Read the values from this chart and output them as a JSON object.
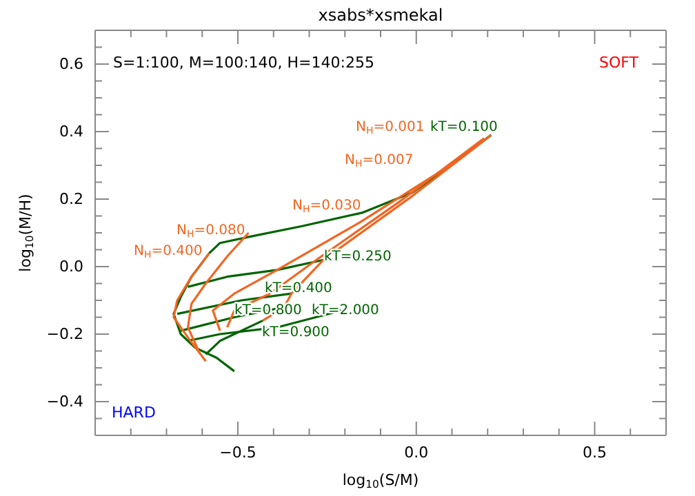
{
  "chart_data": {
    "type": "line",
    "title": "xsabs*xsmekal",
    "xlabel": "log$_{10}$(S/M)",
    "ylabel": "log$_{10}$(M/H)",
    "annotations": [
      "S=1:100, M=100:140, H=140:255",
      "SOFT",
      "HARD"
    ],
    "xlim": [
      -0.9,
      0.7
    ],
    "ylim": [
      -0.5,
      0.7
    ],
    "xticks": [
      {
        "value": -0.9,
        "label": null
      },
      {
        "value": -0.8,
        "label": null
      },
      {
        "value": -0.7,
        "label": null
      },
      {
        "value": -0.6,
        "label": null
      },
      {
        "value": -0.5,
        "label": "−0.5"
      },
      {
        "value": -0.4,
        "label": null
      },
      {
        "value": -0.3,
        "label": null
      },
      {
        "value": -0.2,
        "label": null
      },
      {
        "value": -0.1,
        "label": null
      },
      {
        "value": 0,
        "label": "0.0"
      },
      {
        "value": 0.1,
        "label": null
      },
      {
        "value": 0.2,
        "label": null
      },
      {
        "value": 0.3,
        "label": null
      },
      {
        "value": 0.4,
        "label": null
      },
      {
        "value": 0.5,
        "label": "0.5"
      },
      {
        "value": 0.6,
        "label": null
      },
      {
        "value": 0.7,
        "label": null
      }
    ],
    "yticks": [
      {
        "value": -0.45,
        "label": null
      },
      {
        "value": -0.4,
        "label": "−0.4"
      },
      {
        "value": -0.35,
        "label": null
      },
      {
        "value": -0.3,
        "label": null
      },
      {
        "value": -0.25,
        "label": null
      },
      {
        "value": -0.2,
        "label": "−0.2"
      },
      {
        "value": -0.15,
        "label": null
      },
      {
        "value": -0.1,
        "label": null
      },
      {
        "value": -0.05,
        "label": null
      },
      {
        "value": 0,
        "label": "0.0"
      },
      {
        "value": 0.05,
        "label": null
      },
      {
        "value": 0.1,
        "label": null
      },
      {
        "value": 0.15,
        "label": null
      },
      {
        "value": 0.2,
        "label": "0.2"
      },
      {
        "value": 0.25,
        "label": null
      },
      {
        "value": 0.3,
        "label": null
      },
      {
        "value": 0.35,
        "label": null
      },
      {
        "value": 0.4,
        "label": "0.4"
      },
      {
        "value": 0.45,
        "label": null
      },
      {
        "value": 0.5,
        "label": null
      },
      {
        "value": 0.55,
        "label": null
      },
      {
        "value": 0.6,
        "label": "0.6"
      },
      {
        "value": 0.65,
        "label": null
      }
    ],
    "grid": false,
    "legend": false,
    "marker": "none",
    "line_style": "solid",
    "series": [
      {
        "name": "kT=0.100",
        "color": "#006400",
        "x": [
          0.21,
          0.11,
          -0.01,
          -0.15,
          -0.32,
          -0.46,
          -0.55,
          -0.58,
          -0.63,
          -0.66,
          -0.68,
          -0.66,
          -0.62,
          -0.56,
          -0.51
        ],
        "values": [
          0.39,
          0.31,
          0.22,
          0.16,
          0.12,
          0.09,
          0.07,
          0.04,
          -0.03,
          -0.09,
          -0.14,
          -0.2,
          -0.24,
          -0.27,
          -0.31
        ]
      },
      {
        "name": "kT=0.250",
        "color": "#006400",
        "x": [
          -0.26,
          -0.39,
          -0.53,
          -0.64
        ],
        "values": [
          0.02,
          -0.01,
          -0.03,
          -0.06
        ]
      },
      {
        "name": "kT=0.400",
        "color": "#006400",
        "x": [
          -0.35,
          -0.49,
          -0.67
        ],
        "values": [
          -0.08,
          -0.1,
          -0.14
        ]
      },
      {
        "name": "kT=0.800",
        "color": "#006400",
        "x": [
          -0.37,
          -0.51,
          -0.66
        ],
        "values": [
          -0.12,
          -0.15,
          -0.19
        ]
      },
      {
        "name": "kT=2.000",
        "color": "#006400",
        "x": [
          -0.21,
          -0.39,
          -0.55,
          -0.64
        ],
        "values": [
          -0.13,
          -0.18,
          -0.2,
          -0.22
        ]
      },
      {
        "name": "kT=0.900",
        "color": "#006400",
        "x": [
          -0.43,
          -0.55,
          -0.59
        ],
        "values": [
          -0.16,
          -0.22,
          -0.26
        ]
      },
      {
        "name": "N$_{H}$=0.001",
        "color": "#f26522",
        "x": [
          0.21,
          -0.01,
          -0.26,
          -0.35,
          -0.37,
          -0.43
        ],
        "values": [
          0.39,
          0.21,
          0.02,
          -0.08,
          -0.12,
          -0.16
        ]
      },
      {
        "name": "N$_{H}$=0.007",
        "color": "#f26522",
        "x": [
          0.19,
          -0.05,
          -0.28,
          -0.41,
          -0.51,
          -0.53
        ],
        "values": [
          0.38,
          0.19,
          0.02,
          -0.08,
          -0.13,
          -0.18
        ]
      },
      {
        "name": "N$_{H}$=0.030",
        "color": "#f26522",
        "x": [
          0.11,
          -0.16,
          -0.39,
          -0.51,
          -0.57,
          -0.55
        ],
        "values": [
          0.31,
          0.13,
          -0.01,
          -0.08,
          -0.13,
          -0.19
        ]
      },
      {
        "name": "N$_{H}$=0.080",
        "color": "#f26522",
        "x": [
          -0.47,
          -0.53,
          -0.59,
          -0.63,
          -0.64,
          -0.61
        ],
        "values": [
          0.1,
          0.03,
          -0.05,
          -0.11,
          -0.18,
          -0.25
        ]
      },
      {
        "name": "N$_{H}$=0.400",
        "color": "#f26522",
        "x": [
          -0.58,
          -0.63,
          -0.67,
          -0.68,
          -0.64,
          -0.59
        ],
        "values": [
          0.04,
          -0.03,
          -0.1,
          -0.15,
          -0.21,
          -0.28
        ]
      }
    ]
  }
}
